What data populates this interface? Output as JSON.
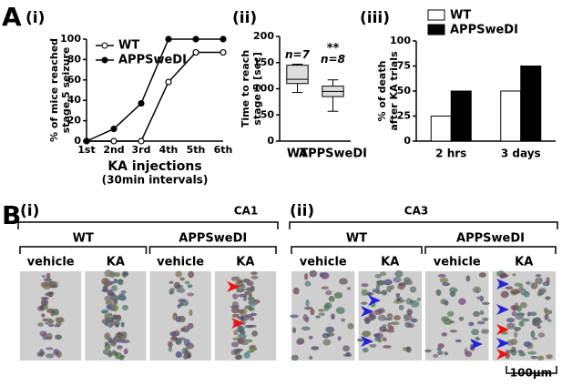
{
  "panel_a_label": "A",
  "chart_data": [
    {
      "type": "line",
      "panel_label": "(i)",
      "ylabel": [
        "% of mice reached",
        "stage 5 seizure"
      ],
      "xlabel": [
        "KA injections",
        "(30min intervals)"
      ],
      "categories": [
        "1st",
        "2nd",
        "3rd",
        "4th",
        "5th",
        "6th"
      ],
      "series": [
        {
          "name": "WT",
          "color": "#000000",
          "marker": "open",
          "values": [
            0,
            0,
            0,
            58,
            87,
            87
          ]
        },
        {
          "name": "APPSweDI",
          "color": "#000000",
          "marker": "filled",
          "values": [
            0,
            12,
            37,
            100,
            100,
            100
          ]
        }
      ],
      "ylim": [
        0,
        100
      ],
      "yticks": [
        0,
        20,
        40,
        60,
        80,
        100
      ]
    },
    {
      "type": "box",
      "panel_label": "(ii)",
      "ylabel": [
        "Time to reach",
        "stage 5 [sec]"
      ],
      "categories": [
        "WT",
        "APPSweDI"
      ],
      "color": "#dddddd",
      "boxes": [
        {
          "min": 93,
          "q1": 110,
          "median": 118,
          "q3": 145,
          "max": 147
        },
        {
          "min": 57,
          "q1": 85,
          "median": 95,
          "q3": 105,
          "max": 117
        }
      ],
      "annotations": [
        "n=7",
        "n=8",
        "**"
      ],
      "ylim": [
        0,
        200
      ],
      "yticks": [
        0,
        50,
        100,
        150,
        200
      ]
    },
    {
      "type": "bar",
      "panel_label": "(iii)",
      "ylabel": [
        "% of death",
        "after KA trials"
      ],
      "categories": [
        "2 hrs",
        "3 days"
      ],
      "series": [
        {
          "name": "WT",
          "color": "#ffffff",
          "values": [
            25,
            50
          ]
        },
        {
          "name": "APPSweDI",
          "color": "#000000",
          "values": [
            50,
            75
          ]
        }
      ],
      "ylim": [
        0,
        100
      ],
      "yticks": [
        0,
        25,
        50,
        75,
        100
      ]
    }
  ],
  "panel_b": {
    "label": "B",
    "sections": [
      {
        "label": "(i)",
        "region": "CA1",
        "groups": [
          {
            "name": "WT",
            "images": [
              "vehicle",
              "KA"
            ]
          },
          {
            "name": "APPSweDI",
            "images": [
              "vehicle",
              "KA"
            ]
          }
        ]
      },
      {
        "label": "(ii)",
        "region": "CA3",
        "groups": [
          {
            "name": "WT",
            "images": [
              "vehicle",
              "KA"
            ]
          },
          {
            "name": "APPSweDI",
            "images": [
              "vehicle",
              "KA"
            ]
          }
        ]
      }
    ],
    "scale_bar": "100μm"
  }
}
